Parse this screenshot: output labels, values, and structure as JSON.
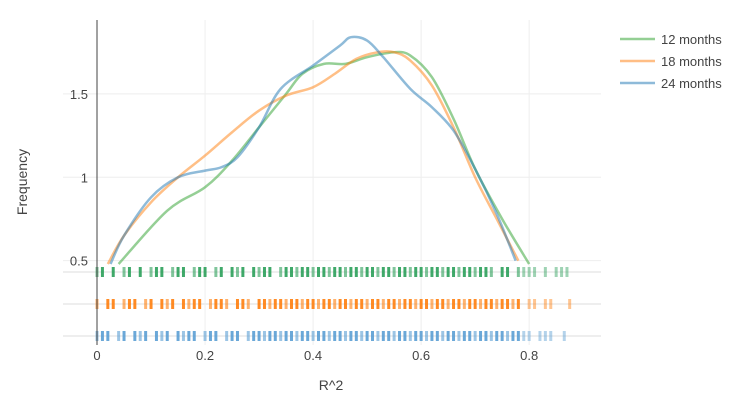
{
  "chart_data": {
    "type": "line",
    "title": "",
    "xlabel": "R^2",
    "ylabel": "Frequency",
    "xlim": [
      -0.063,
      0.933
    ],
    "ylim": [
      0.48,
      1.943
    ],
    "xticks": [
      "0",
      "0.2",
      "0.4",
      "0.6",
      "0.8"
    ],
    "xtick_values": [
      0,
      0.2,
      0.4,
      0.6,
      0.8
    ],
    "yticks": [
      "0.5",
      "1",
      "1.5"
    ],
    "ytick_values": [
      0.5,
      1,
      1.5
    ],
    "grid": true,
    "legend_placement": "top-right",
    "series": [
      {
        "name": "12 months",
        "curve_color": "#2ca02c",
        "rug_color": "#2ca05a",
        "x": [
          0.04,
          0.13,
          0.2,
          0.25,
          0.3,
          0.35,
          0.38,
          0.42,
          0.46,
          0.5,
          0.55,
          0.58,
          0.62,
          0.66,
          0.7,
          0.75,
          0.8
        ],
        "y": [
          0.48,
          0.8,
          0.94,
          1.1,
          1.3,
          1.5,
          1.62,
          1.68,
          1.68,
          1.72,
          1.75,
          1.73,
          1.6,
          1.35,
          1.05,
          0.75,
          0.48
        ],
        "rug": [
          0.0,
          0.01,
          0.03,
          0.05,
          0.06,
          0.08,
          0.1,
          0.11,
          0.12,
          0.14,
          0.15,
          0.16,
          0.18,
          0.19,
          0.2,
          0.22,
          0.23,
          0.25,
          0.26,
          0.27,
          0.29,
          0.3,
          0.31,
          0.32,
          0.34,
          0.35,
          0.36,
          0.37,
          0.38,
          0.39,
          0.4,
          0.41,
          0.42,
          0.43,
          0.44,
          0.45,
          0.46,
          0.47,
          0.48,
          0.49,
          0.5,
          0.51,
          0.52,
          0.53,
          0.54,
          0.55,
          0.56,
          0.57,
          0.58,
          0.59,
          0.6,
          0.61,
          0.62,
          0.63,
          0.64,
          0.65,
          0.66,
          0.67,
          0.68,
          0.69,
          0.7,
          0.71,
          0.72,
          0.73,
          0.75,
          0.76,
          0.78,
          0.79,
          0.8,
          0.81,
          0.83,
          0.85,
          0.86,
          0.87
        ]
      },
      {
        "name": "18 months",
        "curve_color": "#ff7f0e",
        "rug_color": "#ff7f0e",
        "x": [
          0.02,
          0.05,
          0.1,
          0.15,
          0.2,
          0.25,
          0.3,
          0.35,
          0.4,
          0.44,
          0.48,
          0.52,
          0.55,
          0.58,
          0.62,
          0.66,
          0.7,
          0.74,
          0.78
        ],
        "y": [
          0.48,
          0.65,
          0.85,
          1.0,
          1.13,
          1.27,
          1.4,
          1.49,
          1.54,
          1.62,
          1.71,
          1.75,
          1.75,
          1.7,
          1.55,
          1.3,
          1.0,
          0.75,
          0.5
        ],
        "rug": [
          0.0,
          0.02,
          0.03,
          0.05,
          0.06,
          0.07,
          0.09,
          0.1,
          0.12,
          0.13,
          0.14,
          0.16,
          0.17,
          0.18,
          0.19,
          0.21,
          0.22,
          0.23,
          0.24,
          0.26,
          0.27,
          0.28,
          0.3,
          0.31,
          0.32,
          0.33,
          0.34,
          0.35,
          0.36,
          0.37,
          0.38,
          0.39,
          0.4,
          0.41,
          0.42,
          0.43,
          0.44,
          0.45,
          0.46,
          0.47,
          0.48,
          0.49,
          0.5,
          0.51,
          0.52,
          0.53,
          0.54,
          0.55,
          0.56,
          0.57,
          0.58,
          0.59,
          0.6,
          0.61,
          0.62,
          0.63,
          0.64,
          0.65,
          0.66,
          0.67,
          0.68,
          0.69,
          0.7,
          0.71,
          0.72,
          0.73,
          0.74,
          0.75,
          0.76,
          0.77,
          0.78,
          0.8,
          0.81,
          0.83,
          0.84,
          0.875
        ]
      },
      {
        "name": "24 months",
        "curve_color": "#1f77b4",
        "rug_color": "#5b9fd4",
        "x": [
          0.025,
          0.05,
          0.1,
          0.15,
          0.2,
          0.23,
          0.26,
          0.3,
          0.34,
          0.4,
          0.45,
          0.47,
          0.5,
          0.53,
          0.58,
          0.62,
          0.66,
          0.7,
          0.74,
          0.775
        ],
        "y": [
          0.48,
          0.65,
          0.88,
          1.0,
          1.04,
          1.06,
          1.12,
          1.3,
          1.53,
          1.67,
          1.79,
          1.84,
          1.82,
          1.72,
          1.53,
          1.42,
          1.28,
          1.05,
          0.78,
          0.5
        ],
        "rug": [
          0.0,
          0.01,
          0.02,
          0.04,
          0.05,
          0.07,
          0.08,
          0.09,
          0.11,
          0.12,
          0.13,
          0.15,
          0.16,
          0.17,
          0.18,
          0.2,
          0.21,
          0.22,
          0.24,
          0.25,
          0.26,
          0.28,
          0.29,
          0.3,
          0.31,
          0.32,
          0.33,
          0.34,
          0.35,
          0.36,
          0.37,
          0.38,
          0.39,
          0.4,
          0.41,
          0.42,
          0.43,
          0.44,
          0.45,
          0.46,
          0.47,
          0.48,
          0.49,
          0.5,
          0.51,
          0.52,
          0.53,
          0.54,
          0.55,
          0.56,
          0.57,
          0.58,
          0.59,
          0.6,
          0.61,
          0.62,
          0.63,
          0.64,
          0.65,
          0.66,
          0.67,
          0.68,
          0.69,
          0.7,
          0.71,
          0.72,
          0.73,
          0.74,
          0.75,
          0.76,
          0.77,
          0.78,
          0.79,
          0.8,
          0.82,
          0.83,
          0.84,
          0.865
        ]
      }
    ]
  }
}
